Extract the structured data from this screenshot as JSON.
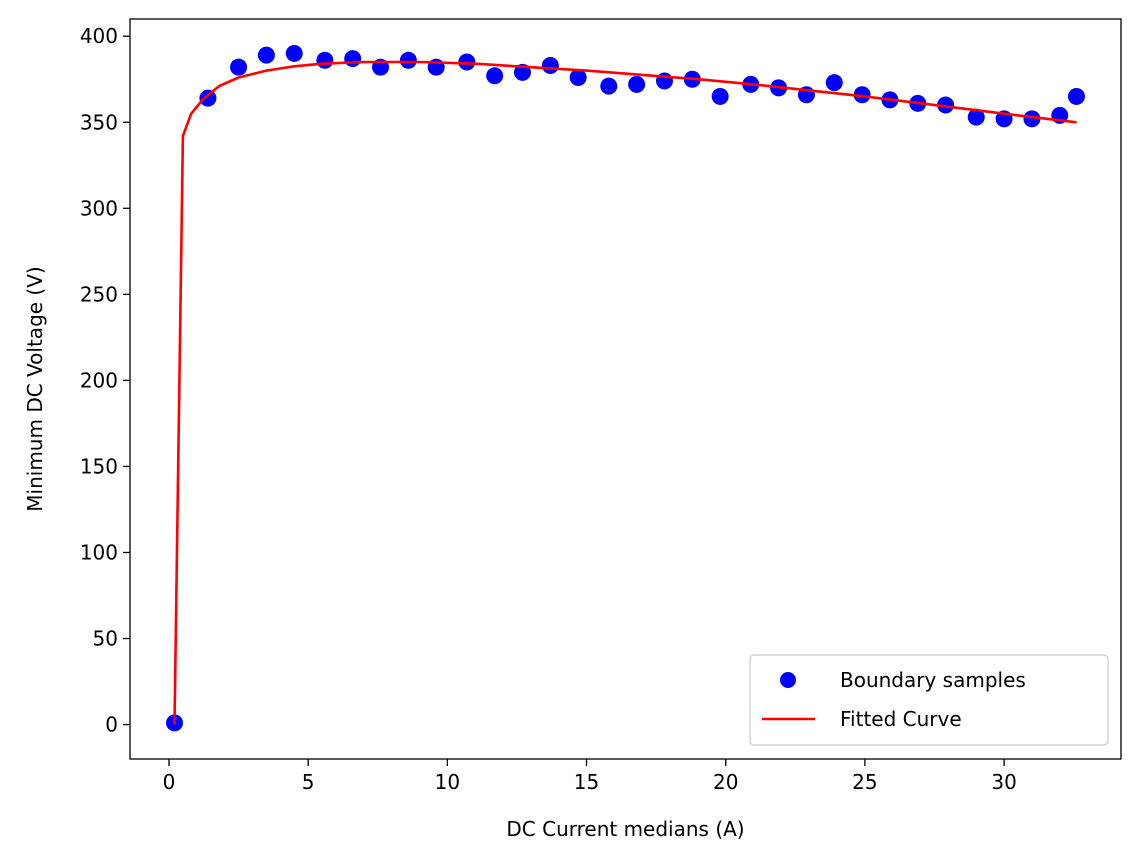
{
  "chart_data": {
    "type": "scatter",
    "xlabel": "DC Current medians (A)",
    "ylabel": "Minimum DC Voltage (V)",
    "xlim": [
      -1.4,
      34.2
    ],
    "ylim": [
      -20,
      410
    ],
    "xticks": [
      0,
      5,
      10,
      15,
      20,
      25,
      30
    ],
    "yticks": [
      0,
      50,
      100,
      150,
      200,
      250,
      300,
      350,
      400
    ],
    "grid": false,
    "legend_position": "lower-right",
    "colors": {
      "scatter": "#0000ff",
      "line": "#ff0000"
    },
    "series": [
      {
        "name": "Boundary samples",
        "kind": "scatter",
        "x": [
          0.2,
          1.4,
          2.5,
          3.5,
          4.5,
          5.6,
          6.6,
          7.6,
          8.6,
          9.6,
          10.7,
          11.7,
          12.7,
          13.7,
          14.7,
          15.8,
          16.8,
          17.8,
          18.8,
          19.8,
          20.9,
          21.9,
          22.9,
          23.9,
          24.9,
          25.9,
          26.9,
          27.9,
          29.0,
          30.0,
          31.0,
          32.0,
          32.6
        ],
        "y": [
          1,
          364,
          382,
          389,
          390,
          386,
          387,
          382,
          386,
          382,
          385,
          377,
          379,
          383,
          376,
          371,
          372,
          374,
          375,
          365,
          372,
          370,
          366,
          373,
          366,
          363,
          361,
          360,
          353,
          352,
          352,
          354,
          365
        ]
      },
      {
        "name": "Fitted Curve",
        "kind": "line",
        "x": [
          0.2,
          0.5,
          0.8,
          1.2,
          1.8,
          2.5,
          3.5,
          4.5,
          5.5,
          7,
          9,
          11,
          13,
          15,
          17,
          19,
          21,
          23,
          25,
          27,
          29,
          31,
          32.6
        ],
        "y": [
          0,
          342,
          355,
          363,
          371,
          376,
          380,
          382.5,
          384,
          385,
          385,
          384,
          382,
          380,
          377.5,
          375,
          372,
          368.5,
          365,
          361,
          357,
          353,
          350
        ]
      }
    ]
  }
}
